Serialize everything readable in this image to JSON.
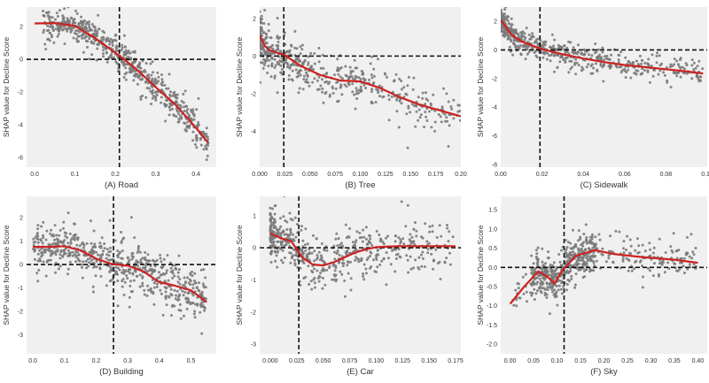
{
  "colors": {
    "panel_bg": "#f0f0f0",
    "points": "#7a7a7a",
    "trend": "#cc2222",
    "guides": "#111111",
    "text": "#333333"
  },
  "chart_data": [
    {
      "id": "A",
      "type": "scatter",
      "xlabel": "(A) Road",
      "ylabel": "SHAP value for Decline Score",
      "xlim": [
        -0.02,
        0.45
      ],
      "ylim": [
        -6.6,
        3.2
      ],
      "xticks": [
        0.0,
        0.1,
        0.2,
        0.3,
        0.4
      ],
      "xtick_labels": [
        "0.0",
        "0.1",
        "0.2",
        "0.3",
        "0.4"
      ],
      "yticks": [
        2,
        0,
        -2,
        -4,
        -6
      ],
      "ytick_labels": [
        "2",
        "0",
        "-2",
        "-4",
        "-6"
      ],
      "vline": 0.21,
      "hline": 0,
      "trend": [
        [
          0.0,
          2.2
        ],
        [
          0.05,
          2.22
        ],
        [
          0.1,
          2.05
        ],
        [
          0.15,
          1.3
        ],
        [
          0.2,
          0.4
        ],
        [
          0.25,
          -0.55
        ],
        [
          0.3,
          -1.7
        ],
        [
          0.35,
          -2.8
        ],
        [
          0.4,
          -4.2
        ],
        [
          0.43,
          -5.1
        ]
      ],
      "n_points": 650,
      "noise": 0.55,
      "x_range": [
        0.02,
        0.43
      ]
    },
    {
      "id": "B",
      "type": "scatter",
      "xlabel": "(B) Tree",
      "ylabel": "SHAP value for Decline Score",
      "xlim": [
        0.0,
        0.2
      ],
      "ylim": [
        -5.9,
        2.6
      ],
      "xticks": [
        0.0,
        0.025,
        0.05,
        0.075,
        0.1,
        0.125,
        0.15,
        0.175,
        0.2
      ],
      "xtick_labels": [
        "0.000",
        "0.025",
        "0.050",
        "0.075",
        "0.100",
        "0.125",
        "0.150",
        "0.175",
        "0.20"
      ],
      "yticks": [
        2,
        0,
        -2,
        -4
      ],
      "ytick_labels": [
        "2",
        "0",
        "-2",
        "-4"
      ],
      "vline": 0.024,
      "hline": 0,
      "trend": [
        [
          0.0,
          1.1
        ],
        [
          0.005,
          0.55
        ],
        [
          0.01,
          0.3
        ],
        [
          0.025,
          0.05
        ],
        [
          0.04,
          -0.5
        ],
        [
          0.06,
          -1.0
        ],
        [
          0.08,
          -1.3
        ],
        [
          0.1,
          -1.35
        ],
        [
          0.12,
          -1.7
        ],
        [
          0.14,
          -2.2
        ],
        [
          0.16,
          -2.6
        ],
        [
          0.18,
          -2.9
        ],
        [
          0.2,
          -3.2
        ]
      ],
      "n_points": 520,
      "noise": 0.7,
      "x_range": [
        0.0,
        0.2
      ]
    },
    {
      "id": "C",
      "type": "scatter",
      "xlabel": "(C) Sidewalk",
      "ylabel": "SHAP value for Decline Score",
      "xlim": [
        0.0,
        0.1
      ],
      "ylim": [
        -8.2,
        3.0
      ],
      "xticks": [
        0.0,
        0.02,
        0.04,
        0.06,
        0.08,
        0.1
      ],
      "xtick_labels": [
        "0.00",
        "0.02",
        "0.04",
        "0.06",
        "0.08",
        "0.10"
      ],
      "yticks": [
        2,
        0,
        -2,
        -4,
        -6,
        -8
      ],
      "ytick_labels": [
        "2",
        "0",
        "-2",
        "-4",
        "-6",
        "-8"
      ],
      "vline": 0.019,
      "hline": 0,
      "trend": [
        [
          0.0,
          2.1
        ],
        [
          0.005,
          1.1
        ],
        [
          0.01,
          0.6
        ],
        [
          0.02,
          0.05
        ],
        [
          0.03,
          -0.3
        ],
        [
          0.04,
          -0.6
        ],
        [
          0.05,
          -0.85
        ],
        [
          0.06,
          -1.05
        ],
        [
          0.07,
          -1.2
        ],
        [
          0.08,
          -1.35
        ],
        [
          0.09,
          -1.5
        ],
        [
          0.098,
          -1.65
        ]
      ],
      "n_points": 560,
      "noise": 0.5,
      "x_range": [
        0.0,
        0.098
      ]
    },
    {
      "id": "D",
      "type": "scatter",
      "xlabel": "(D) Building",
      "ylabel": "SHAP value for Decline Score",
      "xlim": [
        -0.02,
        0.58
      ],
      "ylim": [
        -3.8,
        2.9
      ],
      "xticks": [
        0.0,
        0.1,
        0.2,
        0.3,
        0.4,
        0.5
      ],
      "xtick_labels": [
        "0.0",
        "0.1",
        "0.2",
        "0.3",
        "0.4",
        "0.5"
      ],
      "yticks": [
        2,
        1,
        0,
        -1,
        -2,
        -3
      ],
      "ytick_labels": [
        "2",
        "1",
        "0",
        "-1",
        "-2",
        "-3"
      ],
      "vline": 0.255,
      "hline": 0,
      "trend": [
        [
          0.0,
          0.75
        ],
        [
          0.05,
          0.75
        ],
        [
          0.1,
          0.78
        ],
        [
          0.15,
          0.6
        ],
        [
          0.2,
          0.25
        ],
        [
          0.25,
          0.02
        ],
        [
          0.3,
          -0.05
        ],
        [
          0.35,
          -0.3
        ],
        [
          0.4,
          -0.75
        ],
        [
          0.45,
          -0.9
        ],
        [
          0.5,
          -1.1
        ],
        [
          0.55,
          -1.6
        ]
      ],
      "n_points": 620,
      "noise": 0.55,
      "x_range": [
        0.0,
        0.55
      ]
    },
    {
      "id": "E",
      "type": "scatter",
      "xlabel": "(E) Car",
      "ylabel": "SHAP value for Decline Score",
      "xlim": [
        -0.01,
        0.18
      ],
      "ylim": [
        -3.3,
        1.6
      ],
      "xticks": [
        0.0,
        0.025,
        0.05,
        0.075,
        0.1,
        0.125,
        0.15,
        0.175
      ],
      "xtick_labels": [
        "0.000",
        "0.025",
        "0.050",
        "0.075",
        "0.100",
        "0.125",
        "0.150",
        "0.175"
      ],
      "yticks": [
        1,
        0,
        -1,
        -2,
        -3
      ],
      "ytick_labels": [
        "1",
        "0",
        "-1",
        "-2",
        "-3"
      ],
      "vline": 0.027,
      "hline": 0,
      "trend": [
        [
          0.0,
          0.45
        ],
        [
          0.01,
          0.3
        ],
        [
          0.02,
          0.2
        ],
        [
          0.03,
          -0.3
        ],
        [
          0.04,
          -0.52
        ],
        [
          0.05,
          -0.55
        ],
        [
          0.06,
          -0.45
        ],
        [
          0.07,
          -0.3
        ],
        [
          0.08,
          -0.15
        ],
        [
          0.09,
          -0.05
        ],
        [
          0.1,
          0.02
        ],
        [
          0.12,
          0.05
        ],
        [
          0.15,
          0.05
        ],
        [
          0.175,
          0.05
        ]
      ],
      "n_points": 540,
      "noise": 0.45,
      "x_range": [
        0.0,
        0.175
      ]
    },
    {
      "id": "F",
      "type": "scatter",
      "xlabel": "(F) Sky",
      "ylabel": "SHAP value for Decline Score",
      "xlim": [
        -0.02,
        0.42
      ],
      "ylim": [
        -2.25,
        1.85
      ],
      "xticks": [
        0.0,
        0.05,
        0.1,
        0.15,
        0.2,
        0.25,
        0.3,
        0.35,
        0.4
      ],
      "xtick_labels": [
        "0.00",
        "0.05",
        "0.10",
        "0.15",
        "0.20",
        "0.25",
        "0.30",
        "0.35",
        "0.40"
      ],
      "yticks": [
        1.5,
        1.0,
        0.5,
        0.0,
        -0.5,
        -1.0,
        -1.5,
        -2.0
      ],
      "ytick_labels": [
        "1.5",
        "1.0",
        "0.5",
        "0.0",
        "-0.5",
        "-1.0",
        "-1.5",
        "-2.0"
      ],
      "vline": 0.115,
      "hline": 0,
      "trend": [
        [
          0.0,
          -0.95
        ],
        [
          0.03,
          -0.5
        ],
        [
          0.06,
          -0.1
        ],
        [
          0.08,
          -0.25
        ],
        [
          0.095,
          -0.42
        ],
        [
          0.11,
          -0.1
        ],
        [
          0.14,
          0.3
        ],
        [
          0.18,
          0.45
        ],
        [
          0.22,
          0.35
        ],
        [
          0.28,
          0.27
        ],
        [
          0.35,
          0.2
        ],
        [
          0.4,
          0.12
        ]
      ],
      "n_points": 600,
      "noise": 0.3,
      "x_range": [
        0.005,
        0.4
      ]
    }
  ]
}
